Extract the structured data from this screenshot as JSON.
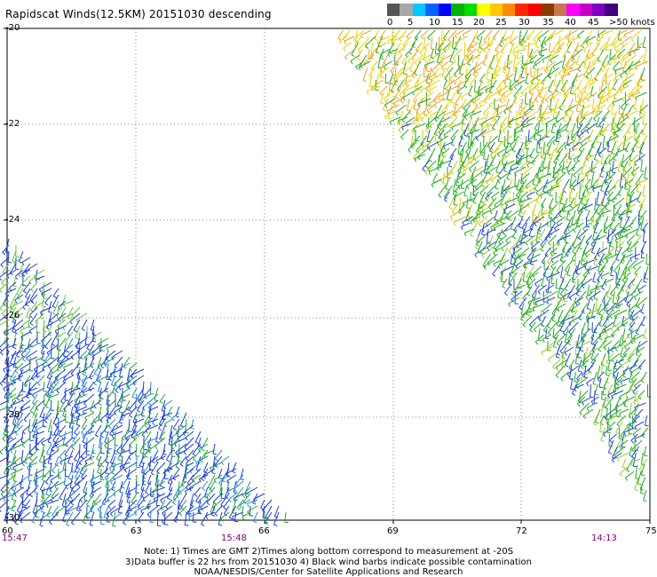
{
  "title": "Rapidscat Winds(12.5KM) 20151030 descending",
  "colorbar": {
    "colors": [
      "#555555",
      "#a8a8a8",
      "#00c8ff",
      "#0064ff",
      "#0000ff",
      "#00b400",
      "#00dc00",
      "#ffff00",
      "#ffc800",
      "#ff8c00",
      "#ff2800",
      "#ff0000",
      "#8c3c00",
      "#c87850",
      "#ff00ff",
      "#c800c8",
      "#8000c0",
      "#400080"
    ],
    "labels": [
      "0",
      "5",
      "10",
      "15",
      "20",
      "25",
      "30",
      "35",
      "40",
      "45",
      ">50 knots"
    ]
  },
  "axes": {
    "lat_labels": [
      "-20",
      "-22",
      "-24",
      "-26",
      "-28",
      "-30"
    ],
    "lon_labels": [
      "63",
      "66",
      "69",
      "72",
      "75"
    ],
    "corner_label": "60"
  },
  "times": [
    "15:47",
    "15:48",
    "14:13"
  ],
  "notes": [
    "Note: 1) Times are GMT 2)Times along bottom correspond to measurement at -20S",
    "3)Data buffer is 22 hrs from 20151030 4) Black wind barbs indicate possible contamination",
    "NOAA/NESDIS/Center for Satellite Applications and Research"
  ]
}
